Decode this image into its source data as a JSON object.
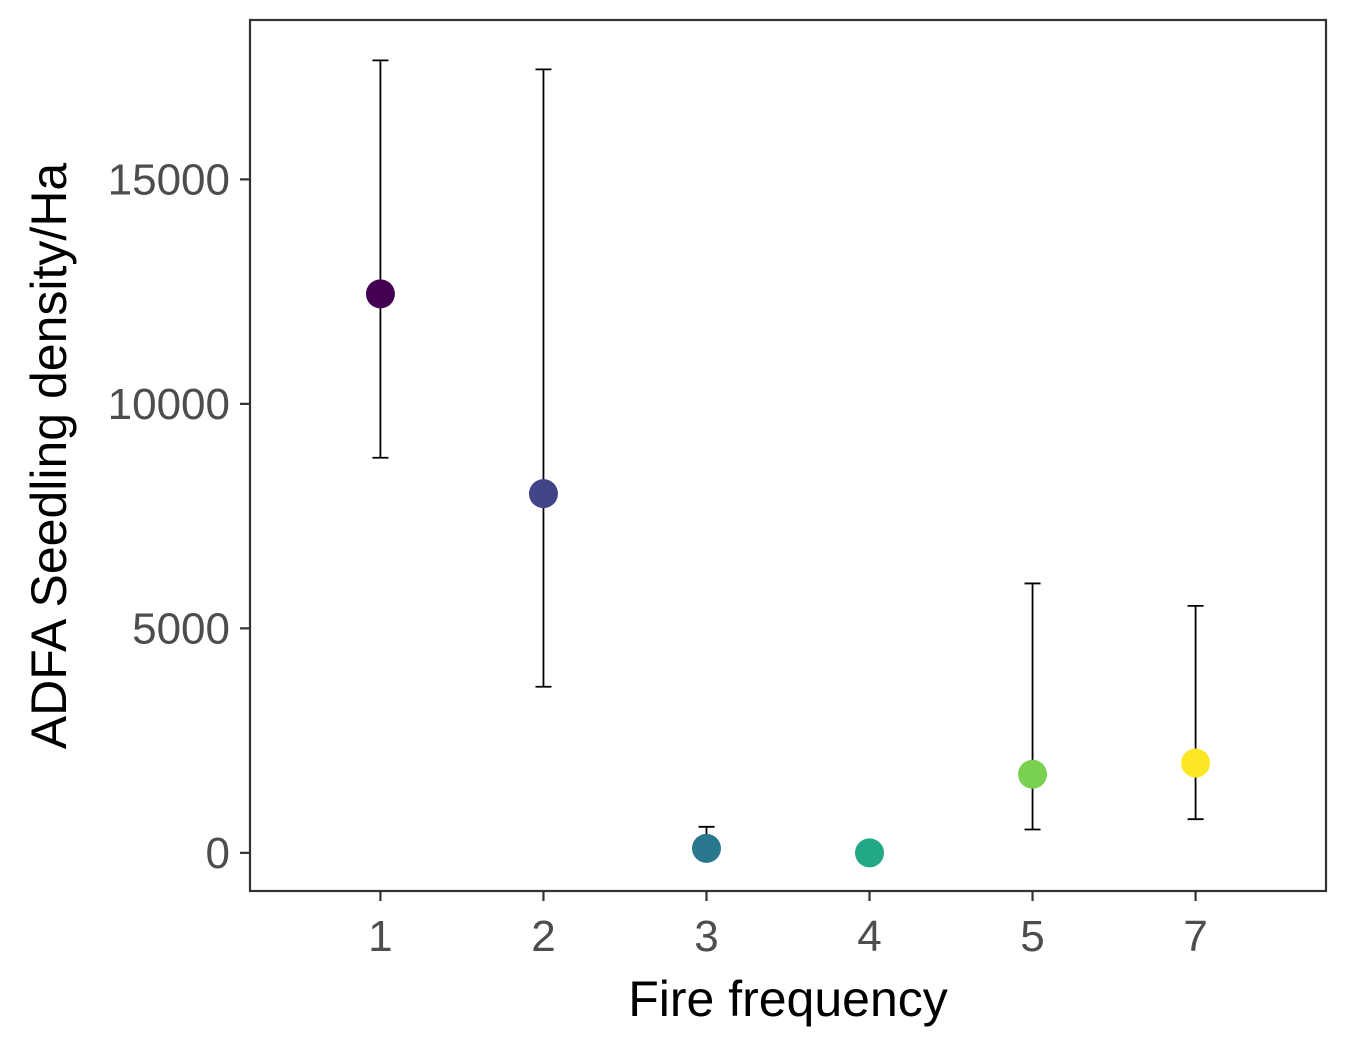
{
  "chart_data": {
    "type": "scatter",
    "title": "",
    "xlabel": "Fire frequency",
    "ylabel": "ADFA Seedling density/Ha",
    "categories": [
      "1",
      "2",
      "3",
      "4",
      "5",
      "7"
    ],
    "values": [
      12450,
      8000,
      100,
      0,
      1750,
      2000
    ],
    "error_lower": [
      8800,
      3700,
      0,
      0,
      520,
      750
    ],
    "error_upper": [
      17650,
      17450,
      580,
      0,
      6000,
      5500
    ],
    "colors": [
      "#440154",
      "#414487",
      "#2a788e",
      "#22a884",
      "#7ad151",
      "#fde725"
    ],
    "ylim": [
      -850,
      18550
    ],
    "yticks": [
      0,
      5000,
      10000,
      15000
    ],
    "ytick_labels": [
      "0",
      "5000",
      "10000",
      "15000"
    ],
    "grid": false,
    "legend": "none"
  }
}
